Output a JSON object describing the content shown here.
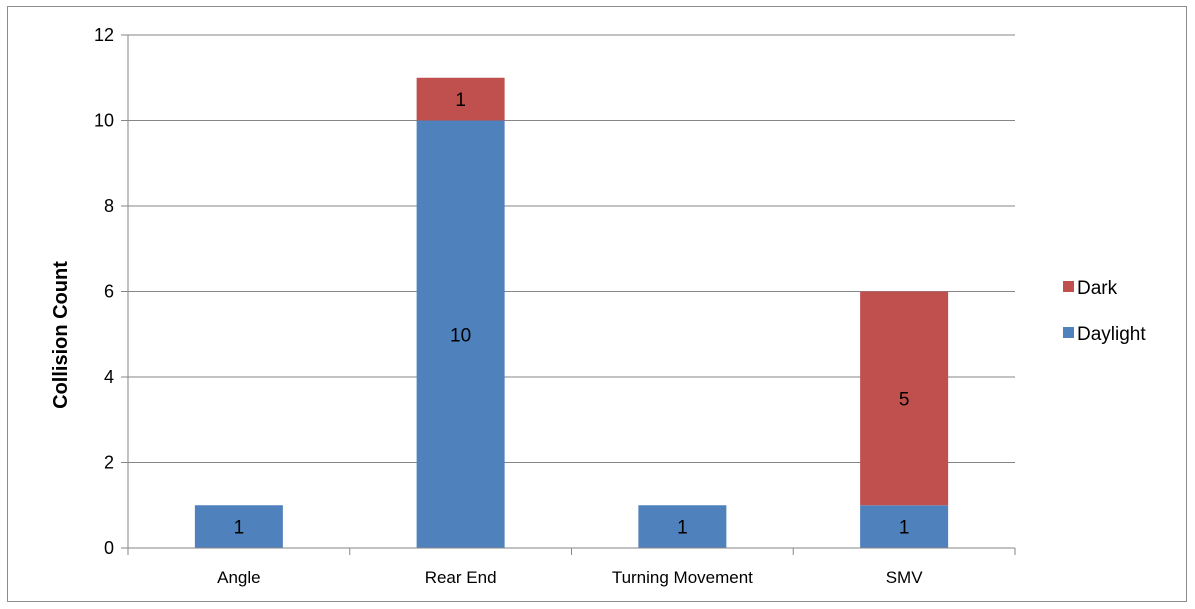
{
  "chart_data": {
    "type": "bar",
    "stacked": true,
    "categories": [
      "Angle",
      "Rear End",
      "Turning Movement",
      "SMV"
    ],
    "series": [
      {
        "name": "Daylight",
        "values": [
          1,
          10,
          1,
          1
        ],
        "color": "#4f81bd"
      },
      {
        "name": "Dark",
        "values": [
          0,
          1,
          0,
          5
        ],
        "color": "#c0504d"
      }
    ],
    "title": "",
    "xlabel": "",
    "ylabel": "Collision Count",
    "ylim": [
      0,
      12
    ],
    "yticks": [
      0,
      2,
      4,
      6,
      8,
      10,
      12
    ],
    "grid": true,
    "legend": {
      "position": "right",
      "order": [
        "Dark",
        "Daylight"
      ]
    },
    "data_labels": true
  }
}
